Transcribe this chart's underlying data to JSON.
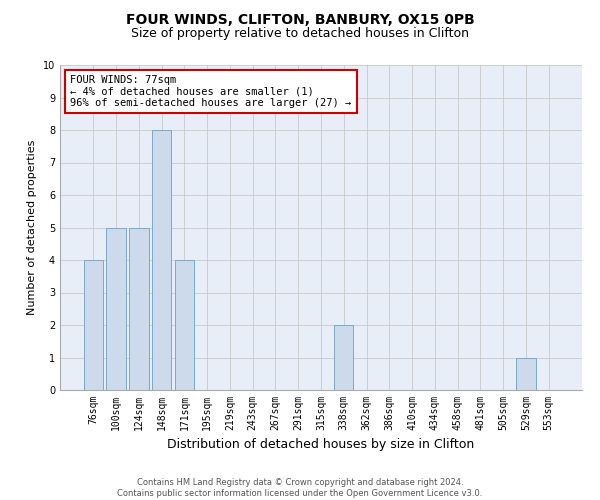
{
  "title_line1": "FOUR WINDS, CLIFTON, BANBURY, OX15 0PB",
  "title_line2": "Size of property relative to detached houses in Clifton",
  "xlabel": "Distribution of detached houses by size in Clifton",
  "ylabel": "Number of detached properties",
  "categories": [
    "76sqm",
    "100sqm",
    "124sqm",
    "148sqm",
    "171sqm",
    "195sqm",
    "219sqm",
    "243sqm",
    "267sqm",
    "291sqm",
    "315sqm",
    "338sqm",
    "362sqm",
    "386sqm",
    "410sqm",
    "434sqm",
    "458sqm",
    "481sqm",
    "505sqm",
    "529sqm",
    "553sqm"
  ],
  "values": [
    4,
    5,
    5,
    8,
    4,
    0,
    0,
    0,
    0,
    0,
    0,
    2,
    0,
    0,
    0,
    0,
    0,
    0,
    0,
    1,
    0
  ],
  "bar_color": "#cddaeb",
  "bar_edge_color": "#7aaac8",
  "annotation_text": "FOUR WINDS: 77sqm\n← 4% of detached houses are smaller (1)\n96% of semi-detached houses are larger (27) →",
  "annotation_box_color": "#ffffff",
  "annotation_box_edge_color": "#cc0000",
  "ylim": [
    0,
    10
  ],
  "yticks": [
    0,
    1,
    2,
    3,
    4,
    5,
    6,
    7,
    8,
    9,
    10
  ],
  "grid_color": "#c8c8c8",
  "bg_color": "#e8eef8",
  "footer_line1": "Contains HM Land Registry data © Crown copyright and database right 2024.",
  "footer_line2": "Contains public sector information licensed under the Open Government Licence v3.0.",
  "title_fontsize": 10,
  "subtitle_fontsize": 9,
  "ylabel_fontsize": 8,
  "xlabel_fontsize": 9,
  "tick_fontsize": 7,
  "annotation_fontsize": 7.5,
  "footer_fontsize": 6
}
